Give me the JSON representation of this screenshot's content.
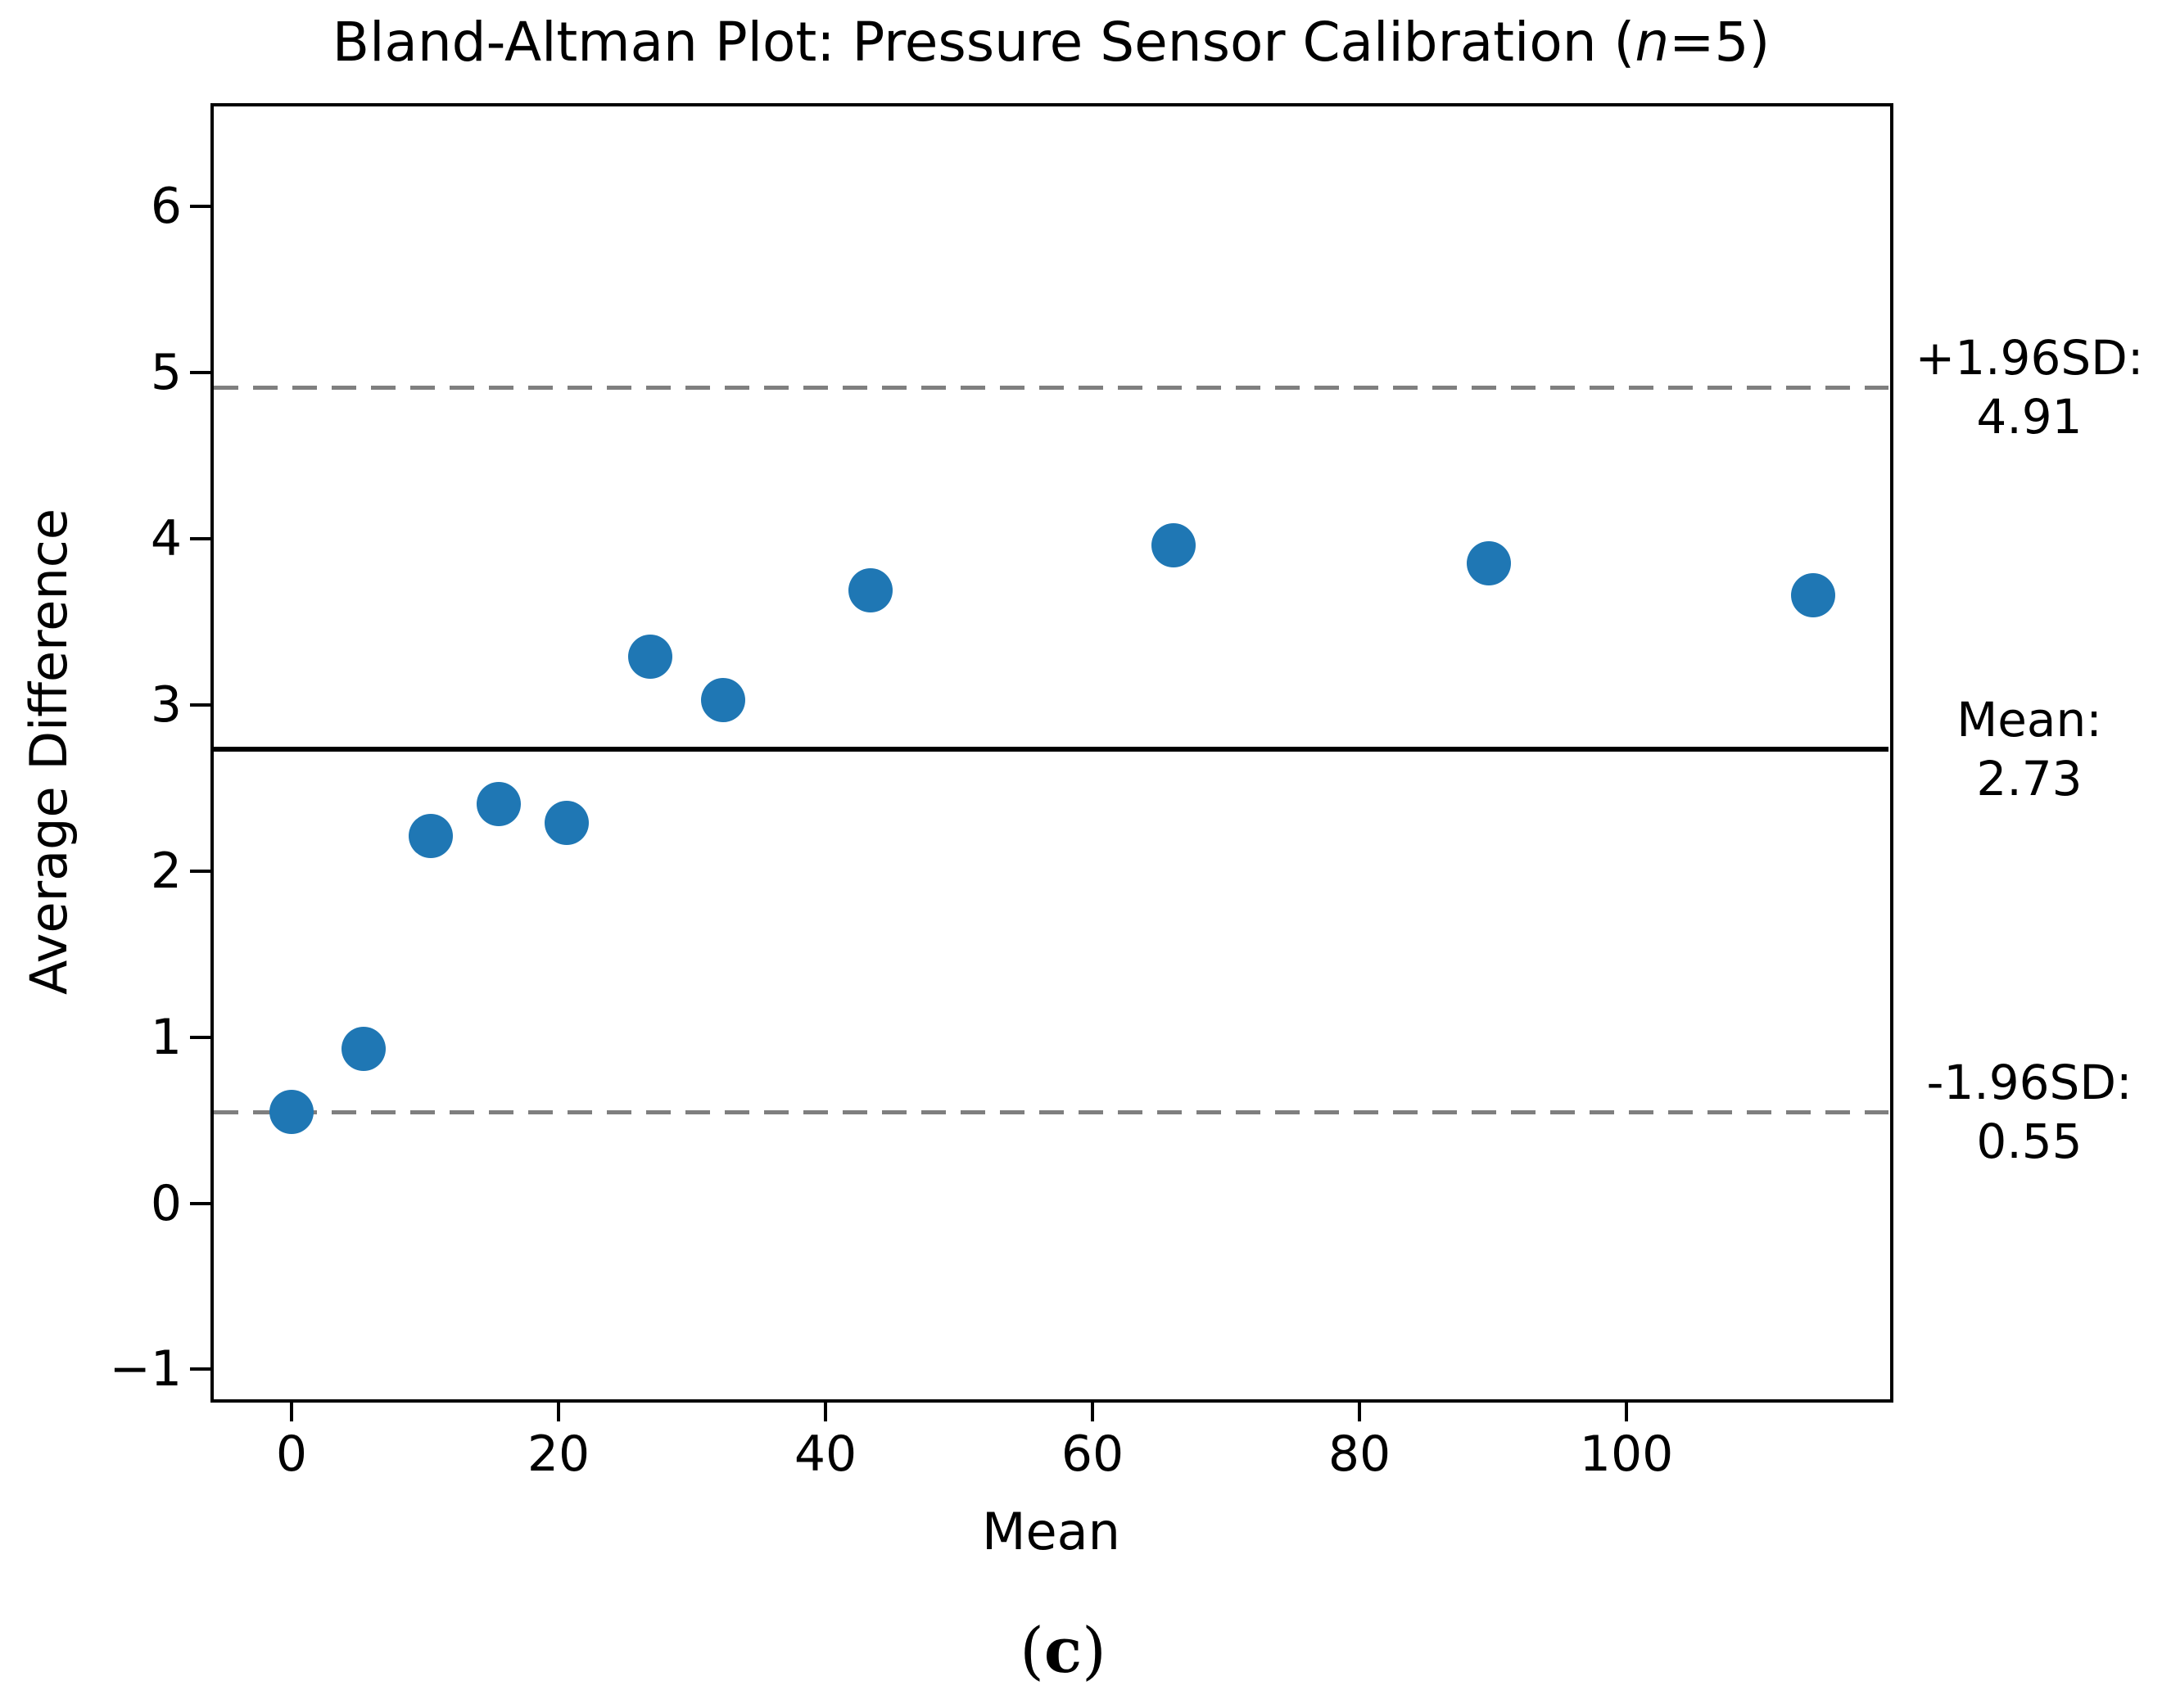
{
  "figure": {
    "caption": {
      "open": "(",
      "letter": "c",
      "close": ")"
    }
  },
  "chart_data": {
    "type": "scatter",
    "title": "Bland-Altman Plot: Pressure Sensor Calibration (n=5)",
    "title_parts": {
      "prefix": "Bland-Altman Plot: Pressure Sensor Calibration (",
      "italic": "n",
      "suffix": "=5)"
    },
    "xlabel": "Mean",
    "ylabel": "Average Difference",
    "xlim": [
      -5.95,
      119.75
    ],
    "ylim": [
      -1.18,
      6.61
    ],
    "grid": false,
    "legend": false,
    "x_ticks": [
      0,
      20,
      40,
      60,
      80,
      100
    ],
    "x_tick_labels": [
      "0",
      "20",
      "40",
      "60",
      "80",
      "100"
    ],
    "y_ticks": [
      -1,
      0,
      1,
      2,
      3,
      4,
      5,
      6
    ],
    "y_tick_labels": [
      "−1",
      "0",
      "1",
      "2",
      "3",
      "4",
      "5",
      "6"
    ],
    "marker_color": "#1f77b4",
    "points": [
      {
        "x": 0.0,
        "y": 0.55
      },
      {
        "x": 5.4,
        "y": 0.93
      },
      {
        "x": 10.4,
        "y": 2.21
      },
      {
        "x": 15.5,
        "y": 2.4
      },
      {
        "x": 20.6,
        "y": 2.29
      },
      {
        "x": 26.9,
        "y": 3.29
      },
      {
        "x": 32.3,
        "y": 3.03
      },
      {
        "x": 43.4,
        "y": 3.69
      },
      {
        "x": 66.1,
        "y": 3.96
      },
      {
        "x": 89.7,
        "y": 3.85
      },
      {
        "x": 114.0,
        "y": 3.66
      }
    ],
    "lines": [
      {
        "id": "upper-loa",
        "value": 4.91,
        "style": "dashed",
        "color": "#7f7f7f",
        "label": "+1.96SD:",
        "label_value": "4.91"
      },
      {
        "id": "mean",
        "value": 2.73,
        "style": "solid",
        "color": "#000000",
        "label": "Mean:",
        "label_value": "2.73"
      },
      {
        "id": "lower-loa",
        "value": 0.55,
        "style": "dashed",
        "color": "#7f7f7f",
        "label": "-1.96SD:",
        "label_value": "0.55"
      }
    ]
  }
}
